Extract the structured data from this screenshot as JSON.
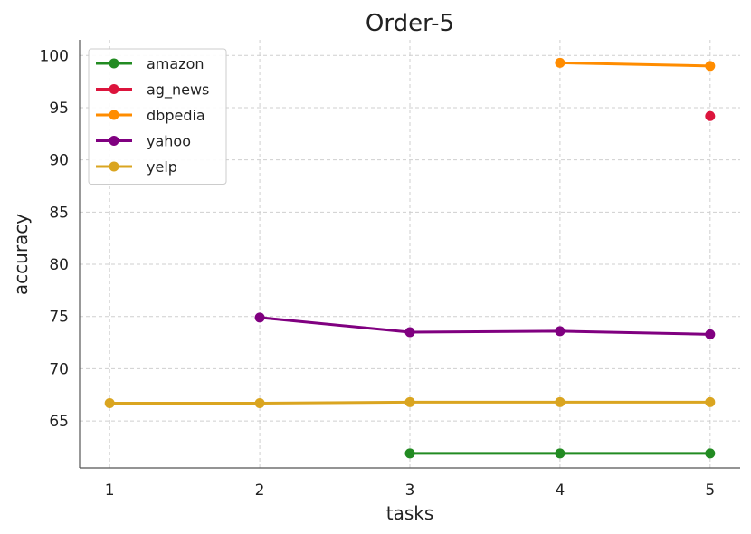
{
  "chart_data": {
    "type": "line",
    "title": "Order-5",
    "xlabel": "tasks",
    "ylabel": "accuracy",
    "x_ticks": [
      1,
      2,
      3,
      4,
      5
    ],
    "y_ticks": [
      65,
      70,
      75,
      80,
      85,
      90,
      95,
      100
    ],
    "xlim": [
      0.8,
      5.2
    ],
    "ylim": [
      60.5,
      101.5
    ],
    "grid": true,
    "legend_position": "top-left",
    "series": [
      {
        "name": "amazon",
        "color": "#228B22",
        "points": [
          [
            3,
            61.9
          ],
          [
            4,
            61.9
          ],
          [
            5,
            61.9
          ]
        ]
      },
      {
        "name": "ag_news",
        "color": "#DC143C",
        "points": [
          [
            5,
            94.2
          ]
        ]
      },
      {
        "name": "dbpedia",
        "color": "#FF8C00",
        "points": [
          [
            4,
            99.3
          ],
          [
            5,
            99.0
          ]
        ]
      },
      {
        "name": "yahoo",
        "color": "#800080",
        "points": [
          [
            2,
            74.9
          ],
          [
            3,
            73.5
          ],
          [
            4,
            73.6
          ],
          [
            5,
            73.3
          ]
        ]
      },
      {
        "name": "yelp",
        "color": "#DAA520",
        "points": [
          [
            1,
            66.7
          ],
          [
            2,
            66.7
          ],
          [
            3,
            66.8
          ],
          [
            4,
            66.8
          ],
          [
            5,
            66.8
          ]
        ]
      }
    ]
  }
}
